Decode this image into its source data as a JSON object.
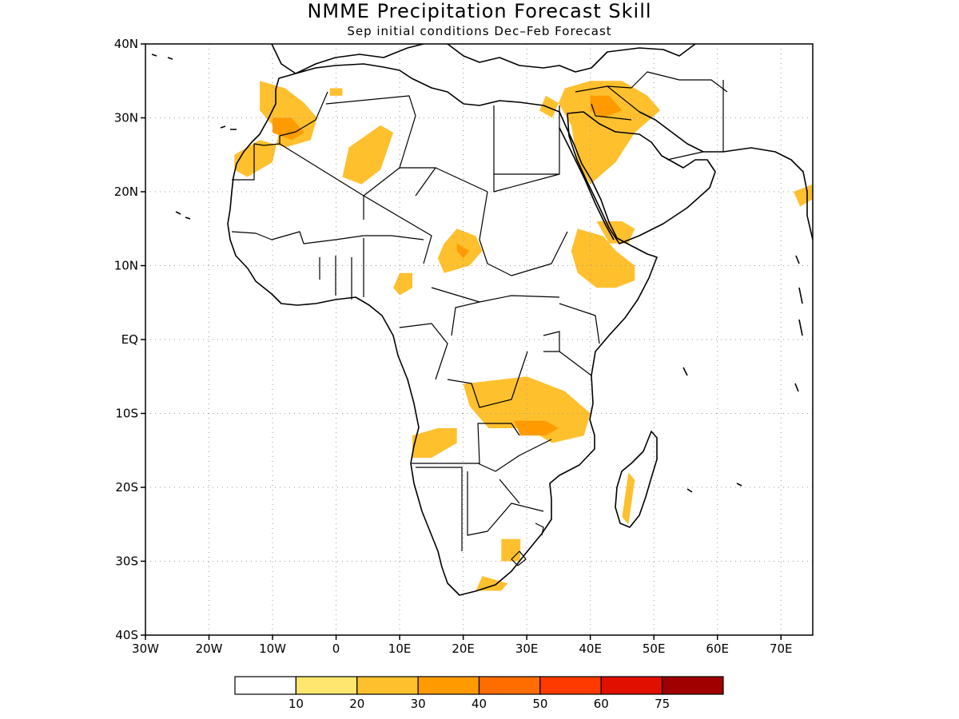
{
  "title": "NMME Precipitation Forecast Skill",
  "subtitle": "Sep initial conditions  Dec–Feb Forecast",
  "map": {
    "lon_range": [
      -30,
      75
    ],
    "lat_range": [
      -40,
      40
    ],
    "lat_ticks": [
      {
        "value": 40,
        "label": "40N"
      },
      {
        "value": 30,
        "label": "30N"
      },
      {
        "value": 20,
        "label": "20N"
      },
      {
        "value": 10,
        "label": "10N"
      },
      {
        "value": 0,
        "label": "EQ"
      },
      {
        "value": -10,
        "label": "10S"
      },
      {
        "value": -20,
        "label": "20S"
      },
      {
        "value": -30,
        "label": "30S"
      },
      {
        "value": -40,
        "label": "40S"
      }
    ],
    "lon_ticks": [
      {
        "value": -30,
        "label": "30W"
      },
      {
        "value": -20,
        "label": "20W"
      },
      {
        "value": -10,
        "label": "10W"
      },
      {
        "value": 0,
        "label": "0"
      },
      {
        "value": 10,
        "label": "10E"
      },
      {
        "value": 20,
        "label": "20E"
      },
      {
        "value": 30,
        "label": "30E"
      },
      {
        "value": 40,
        "label": "40E"
      },
      {
        "value": 50,
        "label": "50E"
      },
      {
        "value": 60,
        "label": "60E"
      },
      {
        "value": 70,
        "label": "70E"
      }
    ],
    "skill_regions": [
      {
        "level": 20,
        "points": [
          [
            -12,
            35
          ],
          [
            -8,
            34
          ],
          [
            -5,
            32
          ],
          [
            -3,
            30
          ],
          [
            -4,
            27
          ],
          [
            -8,
            26
          ],
          [
            -12,
            27
          ],
          [
            -16,
            25
          ],
          [
            -16,
            23
          ],
          [
            -14,
            22
          ],
          [
            -10,
            24
          ],
          [
            -9,
            28
          ],
          [
            -12,
            31
          ]
        ]
      },
      {
        "level": 30,
        "points": [
          [
            -10,
            30
          ],
          [
            -7,
            30
          ],
          [
            -5,
            28
          ],
          [
            -7,
            27
          ],
          [
            -10,
            28
          ]
        ]
      },
      {
        "level": 20,
        "points": [
          [
            2,
            26
          ],
          [
            7,
            29
          ],
          [
            9,
            28
          ],
          [
            7,
            23
          ],
          [
            4,
            21
          ],
          [
            1,
            22
          ]
        ]
      },
      {
        "level": 20,
        "points": [
          [
            -1,
            34
          ],
          [
            1,
            34
          ],
          [
            1,
            33
          ],
          [
            -1,
            33
          ]
        ]
      },
      {
        "level": 20,
        "points": [
          [
            19,
            15
          ],
          [
            22,
            14
          ],
          [
            23,
            12
          ],
          [
            21,
            10
          ],
          [
            17,
            9
          ],
          [
            16,
            11
          ],
          [
            17,
            13
          ]
        ]
      },
      {
        "level": 30,
        "points": [
          [
            19,
            13
          ],
          [
            21,
            12
          ],
          [
            20,
            11
          ],
          [
            19,
            12
          ]
        ]
      },
      {
        "level": 20,
        "points": [
          [
            36,
            34
          ],
          [
            40,
            35
          ],
          [
            45,
            35
          ],
          [
            49,
            33
          ],
          [
            51,
            31
          ],
          [
            47,
            28
          ],
          [
            44,
            24
          ],
          [
            40,
            21
          ],
          [
            38,
            24
          ],
          [
            37,
            29
          ],
          [
            35,
            32
          ]
        ]
      },
      {
        "level": 30,
        "points": [
          [
            40,
            33
          ],
          [
            43,
            33
          ],
          [
            45,
            31
          ],
          [
            42,
            30
          ],
          [
            40,
            31
          ]
        ]
      },
      {
        "level": 20,
        "points": [
          [
            33,
            33
          ],
          [
            35,
            32
          ],
          [
            34,
            30
          ],
          [
            32,
            31
          ]
        ]
      },
      {
        "level": 20,
        "points": [
          [
            38,
            15
          ],
          [
            42,
            14
          ],
          [
            44,
            12
          ],
          [
            47,
            10
          ],
          [
            47,
            8
          ],
          [
            44,
            7
          ],
          [
            41,
            7
          ],
          [
            38,
            9
          ],
          [
            37,
            12
          ]
        ]
      },
      {
        "level": 20,
        "points": [
          [
            41,
            16
          ],
          [
            45,
            16
          ],
          [
            47,
            15
          ],
          [
            46,
            13
          ],
          [
            43,
            13
          ]
        ]
      },
      {
        "level": 20,
        "points": [
          [
            10,
            9
          ],
          [
            12,
            9
          ],
          [
            12,
            7
          ],
          [
            10,
            6
          ],
          [
            9,
            7
          ]
        ]
      },
      {
        "level": 20,
        "points": [
          [
            20,
            -6
          ],
          [
            30,
            -5
          ],
          [
            36,
            -7
          ],
          [
            40,
            -10
          ],
          [
            39,
            -13
          ],
          [
            34,
            -14
          ],
          [
            30,
            -12
          ],
          [
            24,
            -12
          ],
          [
            21,
            -9
          ]
        ]
      },
      {
        "level": 30,
        "points": [
          [
            28,
            -11
          ],
          [
            33,
            -11
          ],
          [
            35,
            -12
          ],
          [
            33,
            -13
          ],
          [
            29,
            -13
          ]
        ]
      },
      {
        "level": 20,
        "points": [
          [
            12,
            -13
          ],
          [
            16,
            -12
          ],
          [
            19,
            -12
          ],
          [
            19,
            -14
          ],
          [
            15,
            -16
          ],
          [
            12,
            -16
          ]
        ]
      },
      {
        "level": 20,
        "points": [
          [
            23,
            -32
          ],
          [
            27,
            -33
          ],
          [
            26,
            -34
          ],
          [
            22,
            -34
          ]
        ]
      },
      {
        "level": 20,
        "points": [
          [
            26,
            -27
          ],
          [
            29,
            -27
          ],
          [
            29,
            -30
          ],
          [
            26,
            -30
          ]
        ]
      },
      {
        "level": 20,
        "points": [
          [
            46,
            -18
          ],
          [
            47,
            -19
          ],
          [
            46,
            -25
          ],
          [
            45,
            -24
          ]
        ]
      },
      {
        "level": 20,
        "points": [
          [
            72,
            20
          ],
          [
            75,
            21
          ],
          [
            75,
            19
          ],
          [
            73,
            18
          ]
        ]
      }
    ]
  },
  "legend": {
    "colors": [
      "#ffffff",
      "#ffe66e",
      "#ffc02e",
      "#ff9b00",
      "#ff6c00",
      "#ff3a00",
      "#e00f00",
      "#a00000"
    ],
    "labels": [
      "10",
      "20",
      "30",
      "40",
      "50",
      "60",
      "75"
    ]
  }
}
